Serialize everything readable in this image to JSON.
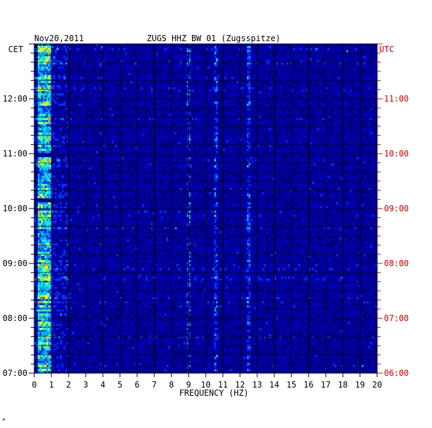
{
  "chart_data": {
    "type": "heatmap",
    "date": "Nov20,2011",
    "title": "ZUGS HHZ BW 01 (Zugsspitze)",
    "left_axis_label": "CET",
    "right_axis_label": "UTC",
    "xlabel": "FREQUENCY (HZ)",
    "xlim": [
      0,
      20
    ],
    "x_ticks": [
      "0",
      "1",
      "2",
      "3",
      "4",
      "5",
      "6",
      "7",
      "8",
      "9",
      "10",
      "11",
      "12",
      "13",
      "14",
      "15",
      "16",
      "17",
      "18",
      "19",
      "20"
    ],
    "left_time_ticks": [
      "12:00",
      "11:00",
      "10:00",
      "09:00",
      "08:00",
      "07:00"
    ],
    "right_time_ticks": [
      "11:00",
      "10:00",
      "09:00",
      "08:00",
      "07:00",
      "06:00"
    ],
    "time_range_cet": [
      "07:00",
      "13:00"
    ],
    "colormap": [
      "#00007a",
      "#0000c8",
      "#0033ff",
      "#0099ff",
      "#00e5ff",
      "#66ff66",
      "#ffff00",
      "#ff8800",
      "#ff0000"
    ],
    "background_color": "#0000a0",
    "utc_color": "#cc0000",
    "notable_features": {
      "strong_low_frequency_band_hz": [
        0.2,
        1.0
      ],
      "persistent_lines_hz": [
        9.0,
        10.6,
        12.5
      ],
      "quiet_row_times_cet": [
        "11:00",
        "10:10"
      ]
    },
    "grid": true,
    "footnote": "*"
  }
}
